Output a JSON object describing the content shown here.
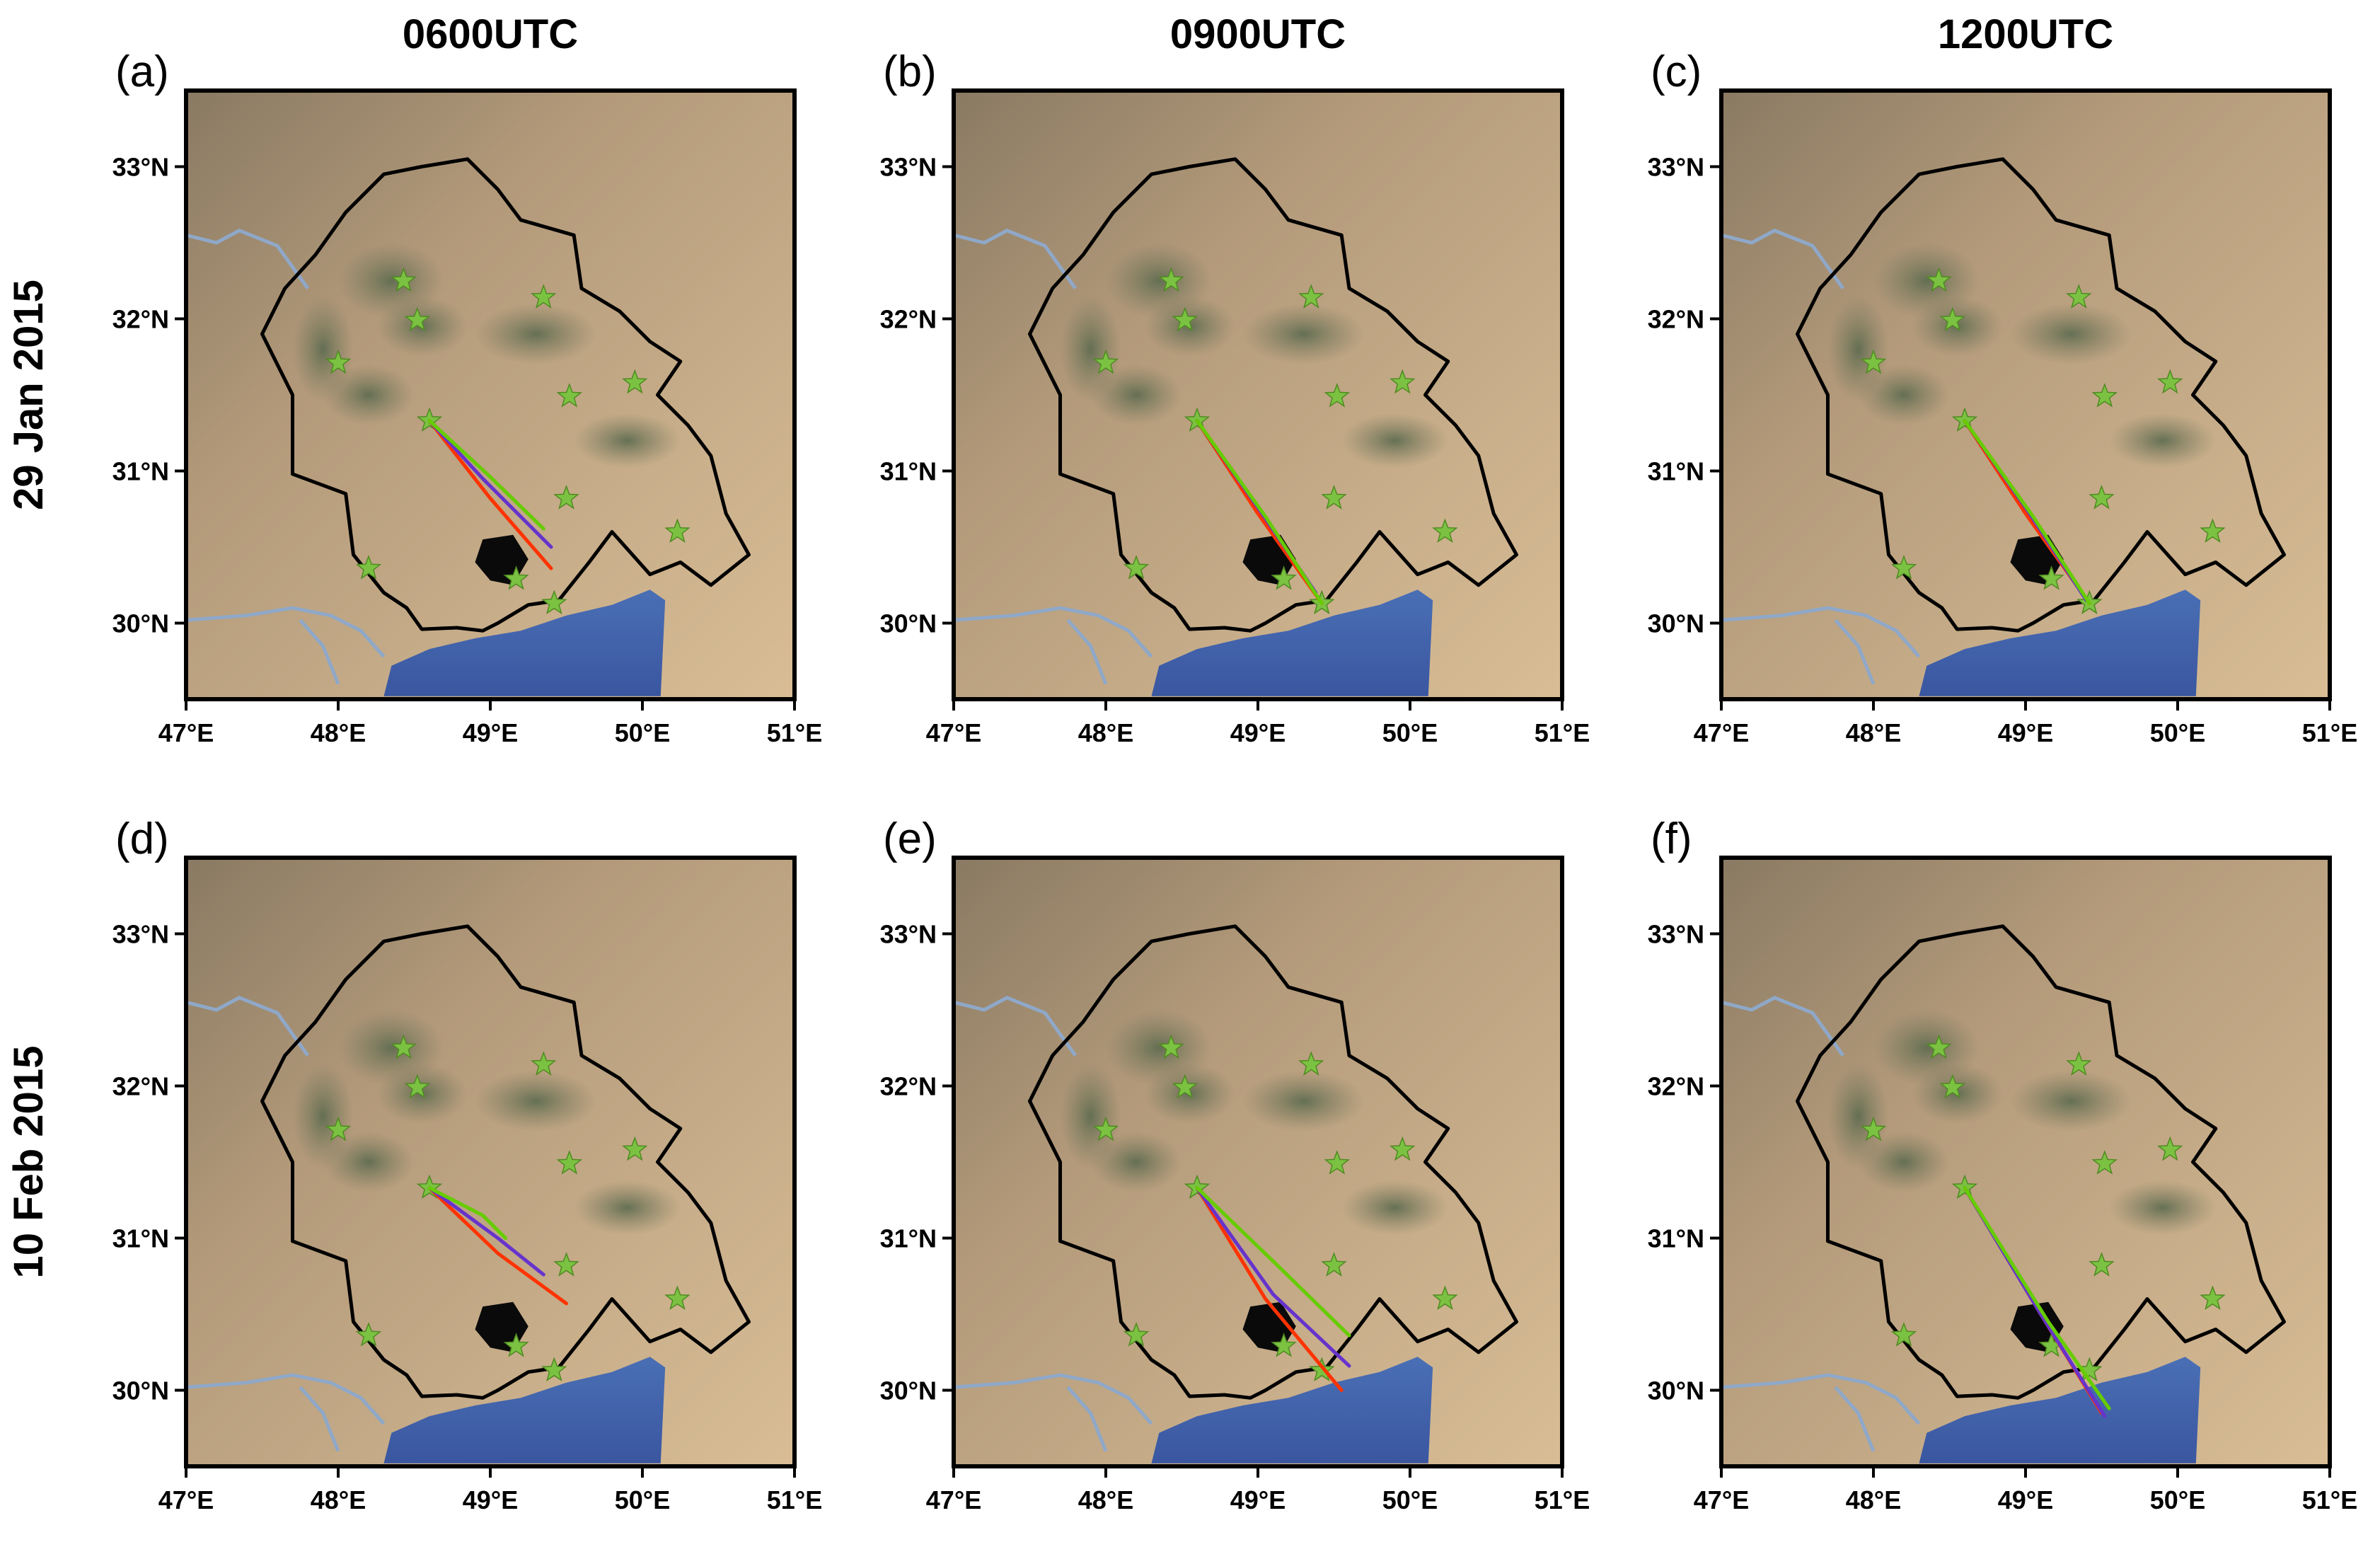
{
  "figure": {
    "columns": [
      "0600UTC",
      "0900UTC",
      "1200UTC"
    ],
    "rows": [
      "29 Jan 2015",
      "10  Feb 2015"
    ]
  },
  "map_extent": {
    "lon": [
      47,
      51
    ],
    "lat": [
      29.5,
      33.5
    ]
  },
  "axes": {
    "lon_ticks": [
      "47°E",
      "48°E",
      "49°E",
      "50°E",
      "51°E"
    ],
    "lat_ticks": [
      "30°N",
      "31°N",
      "32°N",
      "33°N"
    ]
  },
  "colors": {
    "sea": "#3f5ea8",
    "land": "#c9ad88",
    "boundary": "#000000",
    "station_star": "#7cc242",
    "track_red": "#ff3300",
    "track_purple": "#6633cc",
    "track_green": "#66cc00"
  },
  "stations": [
    {
      "lon": 48.43,
      "lat": 32.25
    },
    {
      "lon": 48.52,
      "lat": 31.99
    },
    {
      "lon": 49.35,
      "lat": 32.14
    },
    {
      "lon": 48.0,
      "lat": 31.71
    },
    {
      "lon": 49.52,
      "lat": 31.49
    },
    {
      "lon": 49.95,
      "lat": 31.58
    },
    {
      "lon": 48.6,
      "lat": 31.33
    },
    {
      "lon": 49.5,
      "lat": 30.82
    },
    {
      "lon": 50.23,
      "lat": 30.6
    },
    {
      "lon": 48.2,
      "lat": 30.36
    },
    {
      "lon": 49.17,
      "lat": 30.29
    },
    {
      "lon": 49.42,
      "lat": 30.13
    }
  ],
  "panels": [
    {
      "label": "(a)",
      "tracks": [
        {
          "color": "red",
          "points": [
            [
              48.6,
              31.33
            ],
            [
              49.0,
              30.82
            ],
            [
              49.4,
              30.36
            ]
          ]
        },
        {
          "color": "purple",
          "points": [
            [
              48.6,
              31.33
            ],
            [
              48.95,
              30.95
            ],
            [
              49.4,
              30.5
            ]
          ]
        },
        {
          "color": "green",
          "points": [
            [
              48.6,
              31.33
            ],
            [
              48.98,
              30.98
            ],
            [
              49.35,
              30.62
            ]
          ]
        }
      ]
    },
    {
      "label": "(b)",
      "tracks": [
        {
          "color": "red",
          "points": [
            [
              48.6,
              31.33
            ],
            [
              49.0,
              30.72
            ],
            [
              49.42,
              30.13
            ]
          ]
        },
        {
          "color": "purple",
          "points": [
            [
              48.6,
              31.33
            ],
            [
              49.02,
              30.73
            ],
            [
              49.38,
              30.2
            ]
          ]
        },
        {
          "color": "green",
          "points": [
            [
              48.6,
              31.33
            ],
            [
              49.05,
              30.7
            ],
            [
              49.42,
              30.13
            ]
          ]
        }
      ]
    },
    {
      "label": "(c)",
      "tracks": [
        {
          "color": "red",
          "points": [
            [
              48.6,
              31.33
            ],
            [
              49.0,
              30.72
            ],
            [
              49.42,
              30.13
            ]
          ]
        },
        {
          "color": "purple",
          "points": [
            [
              48.6,
              31.33
            ],
            [
              49.02,
              30.73
            ],
            [
              49.4,
              30.15
            ]
          ]
        },
        {
          "color": "green",
          "points": [
            [
              48.6,
              31.33
            ],
            [
              49.05,
              30.7
            ],
            [
              49.42,
              30.13
            ]
          ]
        }
      ]
    },
    {
      "label": "(d)",
      "tracks": [
        {
          "color": "red",
          "points": [
            [
              48.6,
              31.33
            ],
            [
              49.05,
              30.9
            ],
            [
              49.5,
              30.57
            ]
          ]
        },
        {
          "color": "purple",
          "points": [
            [
              48.6,
              31.33
            ],
            [
              49.05,
              31.0
            ],
            [
              49.35,
              30.76
            ]
          ]
        },
        {
          "color": "green",
          "points": [
            [
              48.6,
              31.33
            ],
            [
              48.95,
              31.15
            ],
            [
              49.1,
              31.0
            ]
          ]
        }
      ]
    },
    {
      "label": "(e)",
      "tracks": [
        {
          "color": "red",
          "points": [
            [
              48.6,
              31.33
            ],
            [
              49.05,
              30.6
            ],
            [
              49.55,
              30.0
            ]
          ]
        },
        {
          "color": "purple",
          "points": [
            [
              48.6,
              31.33
            ],
            [
              49.1,
              30.63
            ],
            [
              49.6,
              30.16
            ]
          ]
        },
        {
          "color": "green",
          "points": [
            [
              48.6,
              31.33
            ],
            [
              49.15,
              30.8
            ],
            [
              49.6,
              30.36
            ]
          ]
        }
      ]
    },
    {
      "label": "(f)",
      "tracks": [
        {
          "color": "red",
          "points": [
            [
              48.6,
              31.33
            ],
            [
              49.1,
              30.5
            ],
            [
              49.5,
              29.85
            ]
          ]
        },
        {
          "color": "purple",
          "points": [
            [
              48.6,
              31.33
            ],
            [
              49.1,
              30.5
            ],
            [
              49.52,
              29.83
            ]
          ]
        },
        {
          "color": "green",
          "points": [
            [
              48.6,
              31.33
            ],
            [
              49.15,
              30.45
            ],
            [
              49.55,
              29.88
            ]
          ]
        }
      ]
    }
  ]
}
